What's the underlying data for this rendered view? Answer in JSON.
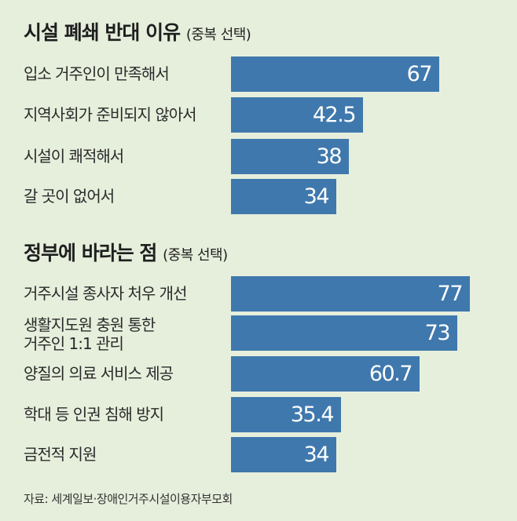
{
  "chart_data": [
    {
      "type": "bar",
      "orientation": "horizontal",
      "title": "시설 폐쇄 반대 이유",
      "subtitle": "(중복 선택)",
      "categories": [
        "입소 거주인이 만족해서",
        "지역사회가 준비되지 않아서",
        "시설이 쾌적해서",
        "갈 곳이 없어서"
      ],
      "values": [
        67,
        42.5,
        38,
        34
      ],
      "labels": [
        "67",
        "42.5",
        "38",
        "34"
      ],
      "color": "#3f78ad"
    },
    {
      "type": "bar",
      "orientation": "horizontal",
      "title": "정부에 바라는 점",
      "subtitle": "(중복 선택)",
      "categories": [
        "거주시설 종사자 처우 개선",
        "생활지도원 충원 통한\n거주인 1:1 관리",
        "양질의 의료 서비스 제공",
        "학대 등 인권 침해 방지",
        "금전적 지원"
      ],
      "values": [
        77,
        73,
        60.7,
        35.4,
        34
      ],
      "labels": [
        "77",
        "73",
        "60.7",
        "35.4",
        "34"
      ],
      "color": "#3f78ad"
    }
  ],
  "source": "자료: 세계일보·장애인거주시설이용자부모회",
  "colors": {
    "background": "#e6efdc",
    "bar": "#3f78ad"
  }
}
